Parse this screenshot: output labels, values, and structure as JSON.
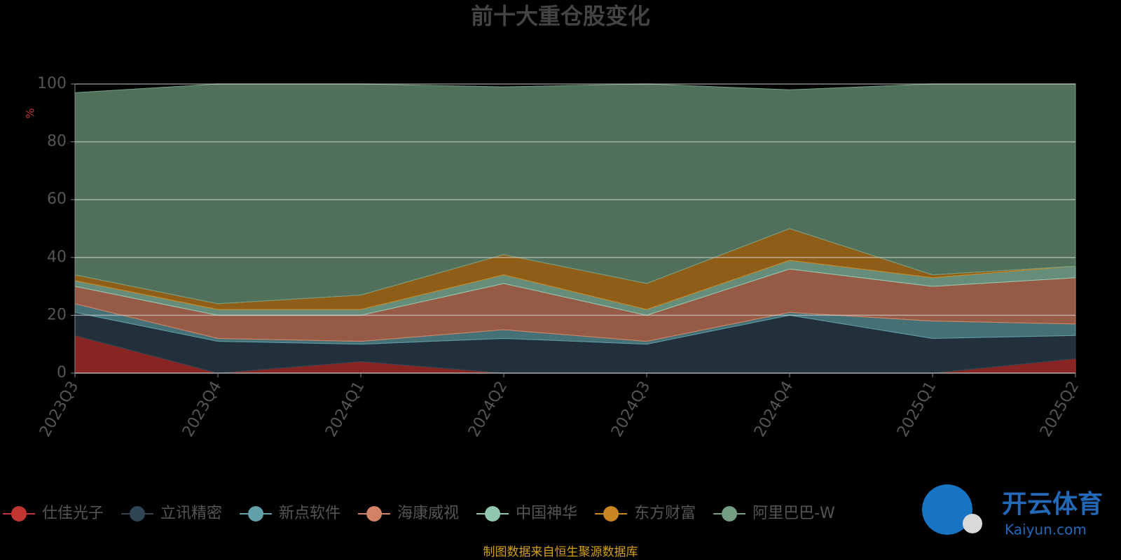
{
  "chart_data": {
    "type": "stacked-area",
    "title": "前十大重仓股变化",
    "y_label": "%",
    "x": [
      "2023Q3",
      "2023Q4",
      "2024Q1",
      "2024Q2",
      "2024Q3",
      "2024Q4",
      "2025Q1",
      "2025Q2"
    ],
    "ylim": [
      0,
      100
    ],
    "yticks": [
      0,
      20,
      40,
      60,
      80,
      100
    ],
    "grid": true,
    "series": [
      {
        "name": "仕佳光子",
        "color": "#c23531",
        "values": [
          13,
          0,
          4,
          0,
          0,
          0,
          0,
          5
        ]
      },
      {
        "name": "立讯精密",
        "color": "#2f4554",
        "values": [
          8,
          11,
          6,
          12,
          10,
          20,
          12,
          8
        ]
      },
      {
        "name": "新点软件",
        "color": "#61a0a8",
        "values": [
          3,
          1,
          1,
          3,
          1,
          1,
          6,
          4
        ]
      },
      {
        "name": "海康威视",
        "color": "#d48265",
        "values": [
          6,
          8,
          9,
          16,
          9,
          15,
          12,
          16
        ]
      },
      {
        "name": "中国神华",
        "color": "#91c7ae",
        "values": [
          2,
          2,
          2,
          3,
          2,
          3,
          3,
          4
        ]
      },
      {
        "name": "东方财富",
        "color": "#ca8622",
        "values": [
          2,
          2,
          5,
          7,
          9,
          11,
          1,
          0
        ]
      },
      {
        "name": "阿里巴巴-W",
        "color": "#749f83",
        "values": [
          63,
          76,
          73,
          58,
          69,
          48,
          66,
          63
        ]
      }
    ],
    "source": "制图数据来自恒生聚源数据库",
    "watermark": {
      "title": "开云体育",
      "url": "Kaiyun.com"
    }
  }
}
